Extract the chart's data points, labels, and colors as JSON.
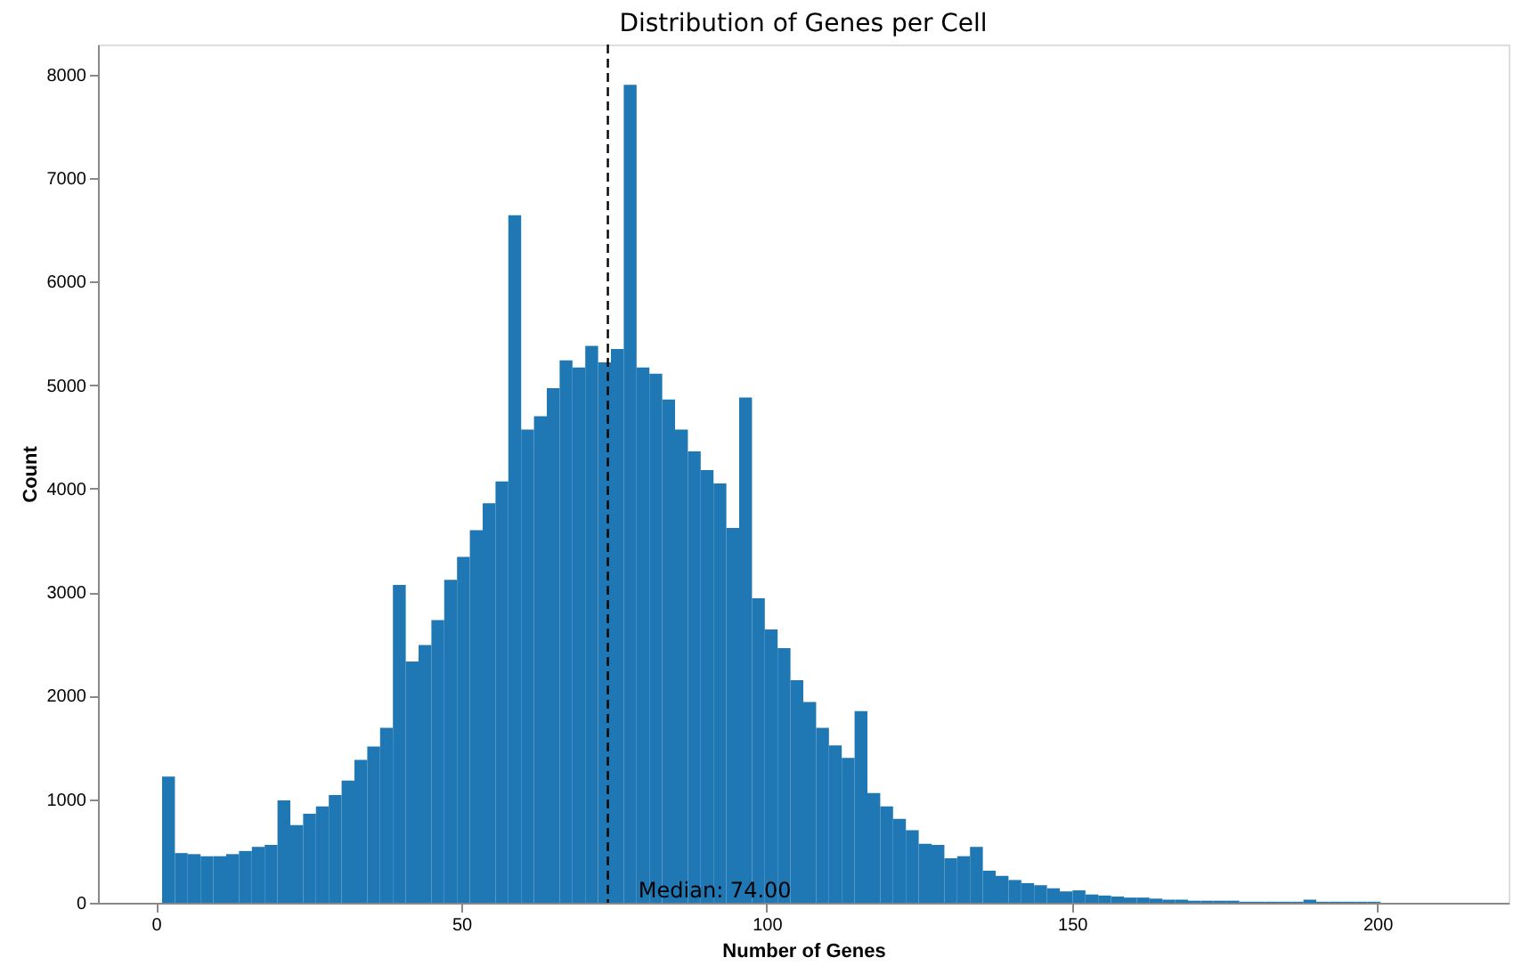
{
  "chart_data": {
    "type": "histogram",
    "title": "Distribution of Genes per Cell",
    "xlabel": "Number of Genes",
    "ylabel": "Count",
    "color": "#1f77b4",
    "bins": [
      1,
      3.1,
      5.2,
      7.3,
      9.4,
      11.5,
      13.6,
      15.7,
      17.8,
      19.9,
      22,
      24.1,
      26.2,
      28.3,
      30.4,
      32.5,
      34.6,
      36.7,
      38.8,
      40.9,
      43,
      45.1,
      47.2,
      49.3,
      51.4,
      53.5,
      55.6,
      57.7,
      59.8,
      61.9,
      64,
      66.1,
      68.2,
      70.3,
      72.4,
      74.5,
      76.6,
      78.7,
      80.8,
      82.9,
      85,
      87.1,
      89.2,
      91.3,
      93.4,
      95.5,
      97.6,
      99.7,
      101.8,
      103.9,
      106,
      108.1,
      110.2,
      112.3,
      114.4,
      116.5,
      118.6,
      120.7,
      122.8,
      124.9,
      127,
      129.1,
      131.2,
      133.3,
      135.4,
      137.5,
      139.6,
      141.7,
      143.8,
      145.9,
      148,
      150.1,
      152.2,
      154.3,
      156.4,
      158.5,
      160.6,
      162.7,
      164.8,
      166.9,
      169,
      171.1,
      173.2,
      175.3,
      177.4,
      179.5,
      181.6,
      183.7,
      185.8,
      187.9,
      190,
      192.1,
      194.2,
      196.3,
      198.4,
      200.5,
      202.6,
      204.7,
      206.8,
      208.9,
      211
    ],
    "values": [
      1220,
      480,
      470,
      450,
      450,
      470,
      500,
      540,
      560,
      990,
      750,
      860,
      930,
      1040,
      1180,
      1380,
      1510,
      1690,
      3070,
      2330,
      2490,
      2730,
      3120,
      3340,
      3600,
      3860,
      4070,
      6640,
      4570,
      4700,
      4970,
      5240,
      5170,
      5380,
      5220,
      5350,
      7900,
      5170,
      5110,
      4860,
      4570,
      4360,
      4180,
      4050,
      3620,
      4880,
      2940,
      2640,
      2460,
      2150,
      1940,
      1690,
      1520,
      1400,
      1850,
      1060,
      930,
      810,
      700,
      570,
      560,
      430,
      450,
      540,
      310,
      260,
      220,
      190,
      170,
      140,
      110,
      120,
      80,
      70,
      60,
      50,
      50,
      40,
      30,
      30,
      20,
      20,
      20,
      20,
      10,
      10,
      10,
      10,
      10,
      30,
      10,
      10,
      10,
      10,
      10,
      0,
      0,
      0,
      0,
      0
    ],
    "xlim": [
      -9.5,
      221.5
    ],
    "ylim": [
      0,
      8290
    ],
    "xticks": [
      0,
      50,
      100,
      150,
      200
    ],
    "yticks": [
      0,
      1000,
      2000,
      3000,
      4000,
      5000,
      6000,
      7000,
      8000
    ],
    "grid": false,
    "ref_lines": [
      {
        "axis": "x",
        "value": 74,
        "color": "#000000",
        "line_style": "dashed"
      }
    ],
    "annotations": [
      {
        "text": "Median: 74.00",
        "x": 79,
        "y": 0
      }
    ]
  }
}
